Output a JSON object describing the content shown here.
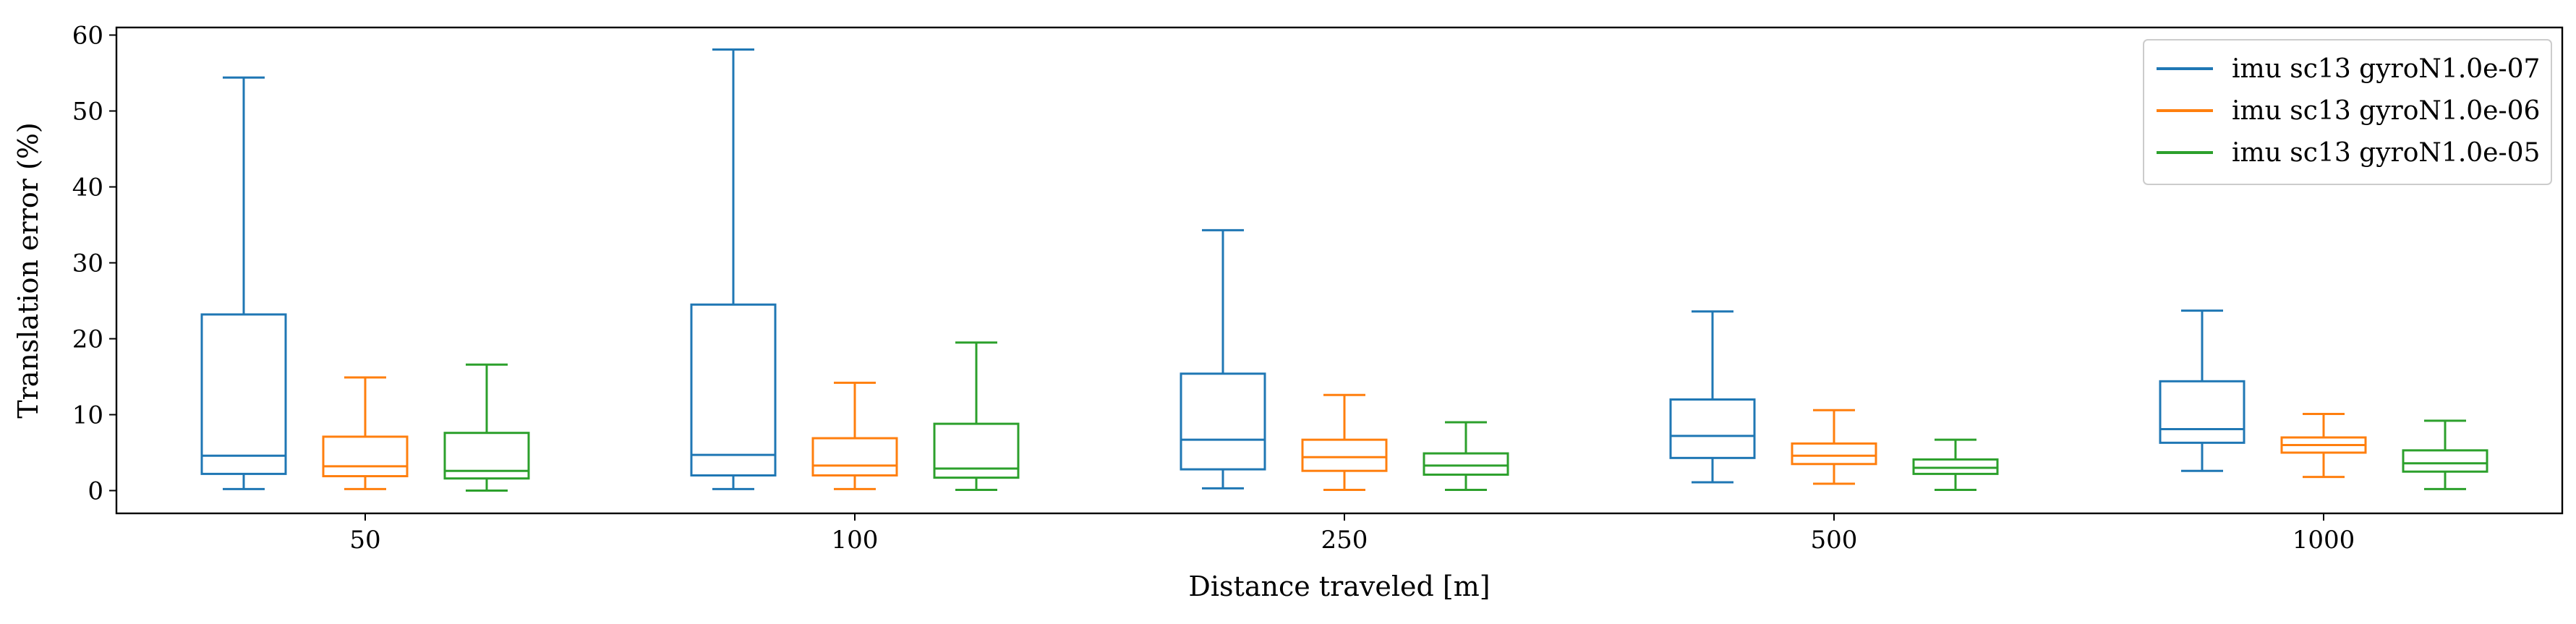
{
  "chart_data": {
    "type": "box",
    "title": "",
    "xlabel": "Distance traveled [m]",
    "ylabel": "Translation error (%)",
    "categories": [
      "50",
      "100",
      "250",
      "500",
      "1000"
    ],
    "ylim": [
      -3,
      61
    ],
    "yticks": [
      0,
      10,
      20,
      30,
      40,
      50,
      60
    ],
    "grid": false,
    "legend_position": "top-right",
    "series": [
      {
        "name": "imu sc13 gyroN1.0e-07",
        "color": "#1f77b4",
        "boxes": [
          {
            "whislo": 0.2,
            "q1": 2.2,
            "med": 4.6,
            "q3": 23.2,
            "whishi": 54.4
          },
          {
            "whislo": 0.2,
            "q1": 2.0,
            "med": 4.7,
            "q3": 24.5,
            "whishi": 58.1
          },
          {
            "whislo": 0.3,
            "q1": 2.8,
            "med": 6.7,
            "q3": 15.4,
            "whishi": 34.3
          },
          {
            "whislo": 1.1,
            "q1": 4.3,
            "med": 7.2,
            "q3": 12.0,
            "whishi": 23.6
          },
          {
            "whislo": 2.6,
            "q1": 6.3,
            "med": 8.1,
            "q3": 14.4,
            "whishi": 23.7
          }
        ]
      },
      {
        "name": "imu sc13 gyroN1.0e-06",
        "color": "#ff7f0e",
        "boxes": [
          {
            "whislo": 0.2,
            "q1": 1.9,
            "med": 3.2,
            "q3": 7.1,
            "whishi": 14.9
          },
          {
            "whislo": 0.2,
            "q1": 2.0,
            "med": 3.3,
            "q3": 6.9,
            "whishi": 14.2
          },
          {
            "whislo": 0.1,
            "q1": 2.6,
            "med": 4.4,
            "q3": 6.7,
            "whishi": 12.6
          },
          {
            "whislo": 0.9,
            "q1": 3.5,
            "med": 4.6,
            "q3": 6.2,
            "whishi": 10.6
          },
          {
            "whislo": 1.8,
            "q1": 5.0,
            "med": 6.0,
            "q3": 7.0,
            "whishi": 10.1
          }
        ]
      },
      {
        "name": "imu sc13 gyroN1.0e-05",
        "color": "#2ca02c",
        "boxes": [
          {
            "whislo": 0.0,
            "q1": 1.6,
            "med": 2.6,
            "q3": 7.6,
            "whishi": 16.6
          },
          {
            "whislo": 0.1,
            "q1": 1.7,
            "med": 2.9,
            "q3": 8.8,
            "whishi": 19.5
          },
          {
            "whislo": 0.1,
            "q1": 2.1,
            "med": 3.3,
            "q3": 4.9,
            "whishi": 9.0
          },
          {
            "whislo": 0.1,
            "q1": 2.2,
            "med": 3.0,
            "q3": 4.1,
            "whishi": 6.7
          },
          {
            "whislo": 0.2,
            "q1": 2.5,
            "med": 3.6,
            "q3": 5.3,
            "whishi": 9.2
          }
        ]
      }
    ]
  }
}
